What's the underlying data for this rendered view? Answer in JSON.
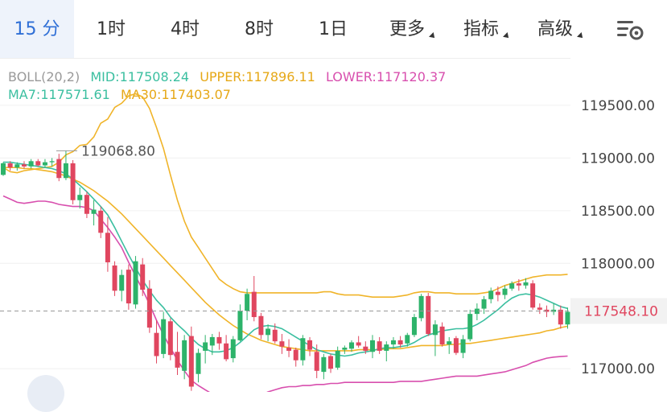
{
  "tabs": [
    {
      "label": "15 分",
      "active": true
    },
    {
      "label": "1时"
    },
    {
      "label": "4时"
    },
    {
      "label": "8时"
    },
    {
      "label": "1日"
    },
    {
      "label": "更多",
      "dropdown": true
    },
    {
      "label": "指标",
      "dropdown": true
    },
    {
      "label": "高级",
      "dropdown": true
    }
  ],
  "settings_icon": "chart-settings-icon",
  "indicators": {
    "boll": {
      "name": "BOLL(20,2)",
      "mid": "MID:117508.24",
      "upper": "UPPER:117896.11",
      "lower": "LOWER:117120.37"
    },
    "ma": {
      "ma7": "MA7:117571.61",
      "ma30": "MA30:117403.07"
    }
  },
  "colors": {
    "up": "#2db36a",
    "down": "#e0465f",
    "ma7": "#3bbfa0",
    "ma30": "#f0b429",
    "upper": "#f0b429",
    "lower": "#d84fae",
    "mid": "#3bbfa0",
    "active": "#2f6fd6"
  },
  "chart_data": {
    "type": "candlestick",
    "y_ticks": [
      "119500.00",
      "119000.00",
      "118500.00",
      "118000.00",
      "117000.00"
    ],
    "y_tick_values": [
      119500,
      119000,
      118500,
      118000,
      117000
    ],
    "ylim": [
      116780,
      119950
    ],
    "high_label": "119068.80",
    "current_price": "117548.10",
    "current_price_value": 117548.1,
    "candles": [
      [
        118840,
        118960,
        118830,
        118950
      ],
      [
        118950,
        118970,
        118880,
        118910
      ],
      [
        118910,
        118960,
        118880,
        118940
      ],
      [
        118940,
        118970,
        118900,
        118920
      ],
      [
        118920,
        118990,
        118900,
        118970
      ],
      [
        118970,
        118990,
        118920,
        118930
      ],
      [
        118930,
        118990,
        118910,
        118960
      ],
      [
        118960,
        119000,
        118920,
        118970
      ],
      [
        118990,
        119040,
        118780,
        118810
      ],
      [
        118810,
        119070,
        118790,
        118950
      ],
      [
        118950,
        118980,
        118560,
        118600
      ],
      [
        118600,
        118720,
        118520,
        118650
      ],
      [
        118650,
        118680,
        118430,
        118470
      ],
      [
        118470,
        118600,
        118360,
        118510
      ],
      [
        118500,
        118540,
        118240,
        118290
      ],
      [
        118290,
        118440,
        117920,
        118010
      ],
      [
        117980,
        118020,
        117690,
        117740
      ],
      [
        117740,
        117940,
        117640,
        117890
      ],
      [
        117940,
        117990,
        117560,
        117620
      ],
      [
        117610,
        118070,
        117570,
        118020
      ],
      [
        117990,
        118050,
        117690,
        117750
      ],
      [
        117760,
        117840,
        117340,
        117390
      ],
      [
        117340,
        117460,
        117050,
        117120
      ],
      [
        117140,
        117540,
        117100,
        117470
      ],
      [
        117450,
        117480,
        117080,
        117130
      ],
      [
        117160,
        117350,
        116940,
        117010
      ],
      [
        116980,
        117320,
        116900,
        117270
      ],
      [
        117310,
        117400,
        116790,
        116830
      ],
      [
        116950,
        117190,
        116870,
        117150
      ],
      [
        117170,
        117320,
        117050,
        117250
      ],
      [
        117220,
        117330,
        117130,
        117300
      ],
      [
        117300,
        117350,
        117180,
        117240
      ],
      [
        117240,
        117320,
        117070,
        117090
      ],
      [
        117100,
        117310,
        117060,
        117280
      ],
      [
        117270,
        117610,
        117260,
        117550
      ],
      [
        117550,
        117760,
        117460,
        117710
      ],
      [
        117730,
        117880,
        117450,
        117490
      ],
      [
        117500,
        117530,
        117280,
        117320
      ],
      [
        117320,
        117420,
        117260,
        117380
      ],
      [
        117370,
        117430,
        117240,
        117260
      ],
      [
        117260,
        117330,
        117140,
        117210
      ],
      [
        117200,
        117280,
        117110,
        117170
      ],
      [
        117180,
        117200,
        117020,
        117080
      ],
      [
        117080,
        117320,
        117030,
        117290
      ],
      [
        117270,
        117300,
        117120,
        117180
      ],
      [
        117160,
        117230,
        116910,
        116980
      ],
      [
        116970,
        117140,
        116900,
        117110
      ],
      [
        117120,
        117140,
        116960,
        117000
      ],
      [
        117010,
        117210,
        116990,
        117170
      ],
      [
        117180,
        117220,
        117140,
        117200
      ],
      [
        117190,
        117270,
        117160,
        117250
      ],
      [
        117250,
        117310,
        117200,
        117220
      ],
      [
        117210,
        117260,
        117140,
        117170
      ],
      [
        117160,
        117320,
        117100,
        117270
      ],
      [
        117260,
        117300,
        117140,
        117170
      ],
      [
        117170,
        117260,
        117070,
        117230
      ],
      [
        117230,
        117300,
        117190,
        117270
      ],
      [
        117270,
        117310,
        117200,
        117230
      ],
      [
        117240,
        117340,
        117210,
        117320
      ],
      [
        117320,
        117520,
        117300,
        117490
      ],
      [
        117480,
        117710,
        117450,
        117690
      ],
      [
        117690,
        117720,
        117310,
        117330
      ],
      [
        117320,
        117460,
        117120,
        117420
      ],
      [
        117400,
        117440,
        117210,
        117230
      ],
      [
        117230,
        117300,
        117140,
        117260
      ],
      [
        117290,
        117310,
        117130,
        117150
      ],
      [
        117150,
        117320,
        117100,
        117280
      ],
      [
        117280,
        117560,
        117260,
        117520
      ],
      [
        117520,
        117620,
        117460,
        117570
      ],
      [
        117570,
        117690,
        117520,
        117660
      ],
      [
        117660,
        117770,
        117620,
        117740
      ],
      [
        117730,
        117780,
        117640,
        117700
      ],
      [
        117700,
        117790,
        117660,
        117760
      ],
      [
        117760,
        117830,
        117740,
        117810
      ],
      [
        117810,
        117850,
        117740,
        117790
      ],
      [
        117790,
        117860,
        117760,
        117820
      ],
      [
        117810,
        117840,
        117560,
        117580
      ],
      [
        117580,
        117620,
        117520,
        117560
      ],
      [
        117560,
        117600,
        117490,
        117540
      ],
      [
        117540,
        117620,
        117510,
        117560
      ],
      [
        117560,
        117600,
        117380,
        117420
      ],
      [
        117420,
        117580,
        117380,
        117540
      ]
    ],
    "upper": [
      118910,
      118870,
      118860,
      118880,
      118890,
      118900,
      118910,
      118920,
      118960,
      119030,
      119060,
      119120,
      119130,
      119200,
      119330,
      119370,
      119480,
      119520,
      119590,
      119610,
      119580,
      119470,
      119290,
      119090,
      118840,
      118600,
      118400,
      118250,
      118150,
      118050,
      117950,
      117850,
      117800,
      117760,
      117730,
      117720,
      117720,
      117720,
      117720,
      117720,
      117720,
      117720,
      117720,
      117720,
      117720,
      117720,
      117730,
      117730,
      117710,
      117700,
      117700,
      117700,
      117690,
      117680,
      117680,
      117680,
      117680,
      117690,
      117700,
      117720,
      117730,
      117730,
      117720,
      117720,
      117720,
      117710,
      117710,
      117710,
      117710,
      117720,
      117730,
      117760,
      117790,
      117810,
      117830,
      117850,
      117870,
      117880,
      117890,
      117890,
      117890,
      117896
    ],
    "lower": [
      118640,
      118610,
      118580,
      118570,
      118580,
      118590,
      118590,
      118580,
      118560,
      118550,
      118540,
      118540,
      118530,
      118500,
      118420,
      118340,
      118250,
      118150,
      118010,
      117880,
      117750,
      117610,
      117460,
      117320,
      117200,
      117080,
      116980,
      116890,
      116840,
      116800,
      116760,
      116740,
      116720,
      116720,
      116720,
      116720,
      116730,
      116750,
      116780,
      116800,
      116820,
      116830,
      116830,
      116840,
      116840,
      116850,
      116850,
      116860,
      116860,
      116870,
      116870,
      116870,
      116870,
      116870,
      116870,
      116870,
      116870,
      116880,
      116880,
      116880,
      116880,
      116890,
      116900,
      116910,
      116920,
      116930,
      116930,
      116930,
      116930,
      116940,
      116950,
      116960,
      116970,
      116990,
      117010,
      117030,
      117060,
      117080,
      117100,
      117110,
      117115,
      117120
    ],
    "ma7": [
      118960,
      118960,
      118950,
      118940,
      118930,
      118920,
      118910,
      118900,
      118880,
      118850,
      118800,
      118740,
      118680,
      118610,
      118540,
      118460,
      118340,
      118210,
      118080,
      117960,
      117840,
      117740,
      117650,
      117580,
      117490,
      117420,
      117360,
      117290,
      117230,
      117190,
      117160,
      117160,
      117170,
      117200,
      117250,
      117310,
      117370,
      117400,
      117410,
      117400,
      117380,
      117340,
      117300,
      117260,
      117220,
      117180,
      117160,
      117140,
      117130,
      117120,
      117130,
      117150,
      117160,
      117170,
      117190,
      117200,
      117200,
      117210,
      117220,
      117250,
      117290,
      117320,
      117340,
      117360,
      117370,
      117380,
      117380,
      117390,
      117420,
      117460,
      117510,
      117560,
      117620,
      117670,
      117700,
      117710,
      117700,
      117680,
      117650,
      117620,
      117590,
      117572
    ],
    "ma30": [
      118910,
      118910,
      118910,
      118900,
      118900,
      118890,
      118880,
      118870,
      118850,
      118830,
      118800,
      118770,
      118730,
      118690,
      118640,
      118590,
      118530,
      118470,
      118400,
      118330,
      118260,
      118190,
      118120,
      118050,
      117980,
      117910,
      117840,
      117770,
      117700,
      117630,
      117570,
      117510,
      117460,
      117410,
      117370,
      117330,
      117300,
      117270,
      117250,
      117230,
      117210,
      117200,
      117190,
      117180,
      117170,
      117170,
      117170,
      117170,
      117170,
      117170,
      117170,
      117180,
      117180,
      117180,
      117180,
      117190,
      117190,
      117190,
      117200,
      117210,
      117220,
      117220,
      117220,
      117220,
      117230,
      117230,
      117240,
      117240,
      117250,
      117260,
      117270,
      117280,
      117290,
      117300,
      117310,
      117320,
      117330,
      117340,
      117360,
      117370,
      117390,
      117403
    ]
  }
}
